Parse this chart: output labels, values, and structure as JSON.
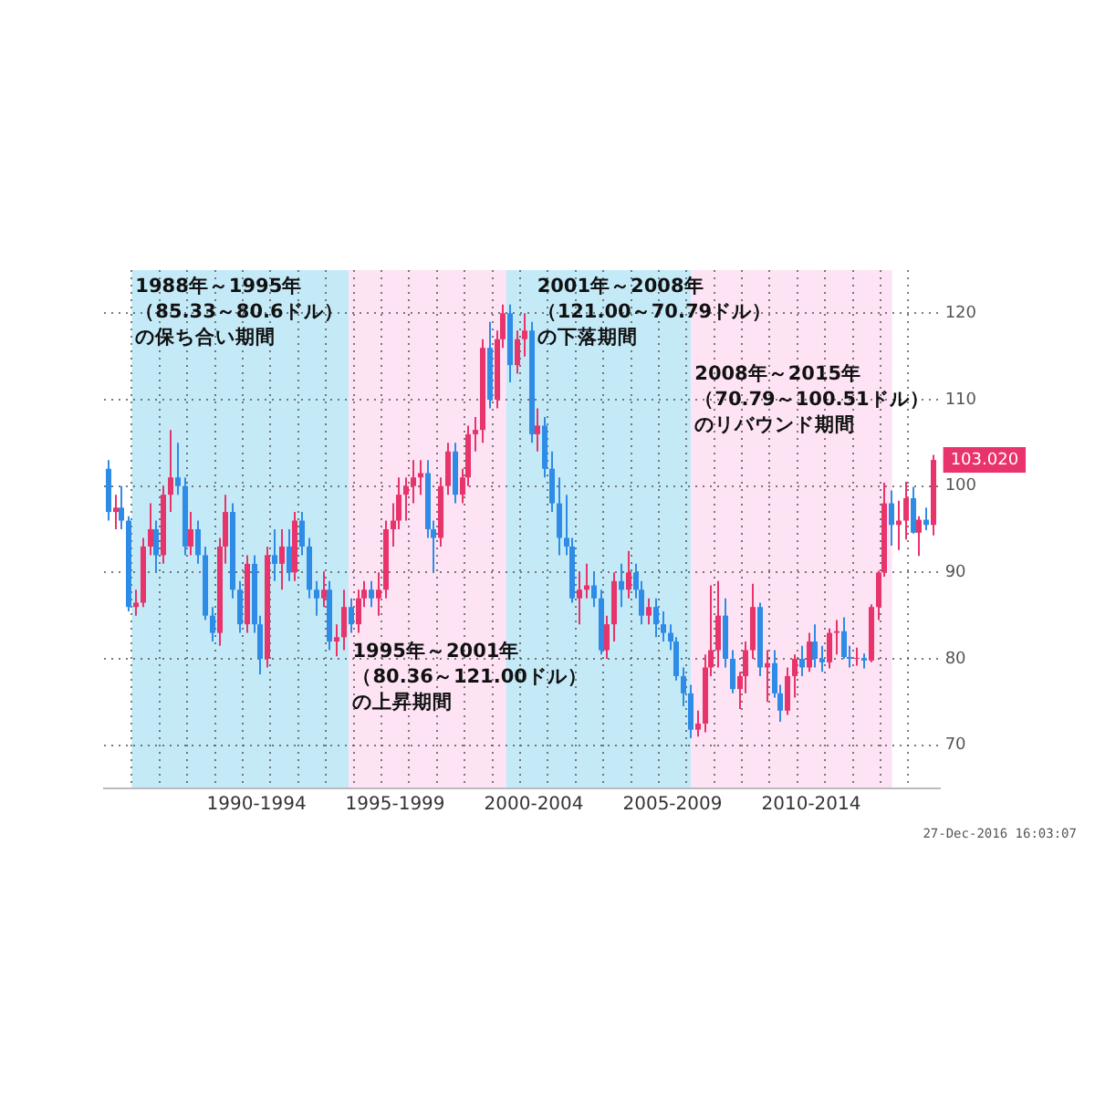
{
  "chart_data": {
    "type": "candlestick",
    "x": [
      "1987-02-15",
      "1987-05-15",
      "1987-08-15",
      "1987-11-15",
      "1988-02-15",
      "1988-05-15",
      "1988-08-15",
      "1988-11-15",
      "1989-02-15",
      "1989-05-15",
      "1989-08-15",
      "1989-11-15",
      "1990-02-15",
      "1990-05-15",
      "1990-08-15",
      "1990-11-15",
      "1991-02-15",
      "1991-05-15",
      "1991-08-15",
      "1991-11-15",
      "1992-02-15",
      "1992-05-15",
      "1992-08-15",
      "1992-11-15",
      "1993-02-15",
      "1993-05-15",
      "1993-08-15",
      "1993-11-15",
      "1994-02-15",
      "1994-05-15",
      "1994-08-15",
      "1994-11-15",
      "1995-02-15",
      "1995-05-15",
      "1995-08-15",
      "1995-11-15",
      "1996-02-15",
      "1996-05-15",
      "1996-08-15",
      "1996-11-15",
      "1997-02-15",
      "1997-05-15",
      "1997-08-15",
      "1997-11-15",
      "1998-02-15",
      "1998-05-15",
      "1998-08-15",
      "1998-11-15",
      "1999-02-15",
      "1999-05-15",
      "1999-08-15",
      "1999-11-15",
      "2000-02-15",
      "2000-05-15",
      "2000-08-15",
      "2000-11-15",
      "2001-02-15",
      "2001-05-15",
      "2001-08-15",
      "2001-11-15",
      "2002-02-15",
      "2002-05-15",
      "2002-08-15",
      "2002-11-15",
      "2003-02-15",
      "2003-05-15",
      "2003-08-15",
      "2003-11-15",
      "2004-02-15",
      "2004-05-15",
      "2004-08-15",
      "2004-11-15",
      "2005-02-15",
      "2005-05-15",
      "2005-08-15",
      "2005-11-15",
      "2006-02-15",
      "2006-05-15",
      "2006-08-15",
      "2006-11-15",
      "2007-02-15",
      "2007-05-15",
      "2007-08-15",
      "2007-11-15",
      "2008-02-15",
      "2008-05-15",
      "2008-08-15",
      "2008-11-15",
      "2009-02-15",
      "2009-05-15",
      "2009-08-15",
      "2009-11-15",
      "2010-02-15",
      "2010-05-15",
      "2010-08-15",
      "2010-11-15",
      "2011-02-15",
      "2011-05-15",
      "2011-08-15",
      "2011-11-15",
      "2012-02-15",
      "2012-05-15",
      "2012-08-15",
      "2012-11-15",
      "2013-02-15",
      "2013-05-15",
      "2013-08-15",
      "2013-11-15",
      "2014-02-15",
      "2014-05-15",
      "2014-08-15",
      "2014-11-15",
      "2015-02-15",
      "2015-05-15",
      "2015-08-15",
      "2015-11-15",
      "2016-02-15",
      "2016-05-15",
      "2016-08-15",
      "2016-11-15"
    ],
    "ohlc": [
      [
        102,
        103,
        96,
        97
      ],
      [
        97,
        99,
        95,
        97.5
      ],
      [
        97.5,
        100,
        95,
        96
      ],
      [
        96,
        96.5,
        85.5,
        86
      ],
      [
        86,
        88,
        85,
        86.5
      ],
      [
        86.5,
        94,
        86,
        93
      ],
      [
        93,
        98,
        92,
        95
      ],
      [
        95,
        96,
        90,
        92
      ],
      [
        92,
        100,
        91,
        99
      ],
      [
        99,
        106.5,
        97,
        101
      ],
      [
        101,
        105,
        99,
        100
      ],
      [
        100,
        101,
        92,
        93
      ],
      [
        93,
        97,
        92,
        95
      ],
      [
        95,
        96,
        91,
        92
      ],
      [
        92,
        93,
        84.5,
        85
      ],
      [
        85,
        86,
        82,
        83
      ],
      [
        83,
        94,
        81.5,
        93
      ],
      [
        93,
        99,
        91,
        97
      ],
      [
        97,
        98,
        87,
        88
      ],
      [
        88,
        89,
        83,
        84
      ],
      [
        84,
        92,
        83,
        91
      ],
      [
        91,
        92,
        83,
        84
      ],
      [
        84,
        85,
        78.2,
        80
      ],
      [
        80,
        93,
        79,
        92
      ],
      [
        92,
        95,
        89,
        91
      ],
      [
        91,
        95,
        88,
        93
      ],
      [
        93,
        95,
        89,
        90
      ],
      [
        90,
        97,
        89,
        96
      ],
      [
        96,
        97,
        92,
        93
      ],
      [
        93,
        94,
        87,
        88
      ],
      [
        88,
        89,
        85,
        87
      ],
      [
        87,
        90,
        86,
        88
      ],
      [
        88,
        89,
        81,
        82
      ],
      [
        82,
        84,
        80.3,
        82.5
      ],
      [
        82.5,
        88,
        81,
        86
      ],
      [
        86,
        87,
        83,
        84
      ],
      [
        84,
        88,
        83,
        87
      ],
      [
        87,
        89,
        86,
        88
      ],
      [
        88,
        89,
        86,
        87
      ],
      [
        87,
        90,
        85,
        88
      ],
      [
        88,
        96,
        87,
        95
      ],
      [
        95,
        98,
        93,
        96
      ],
      [
        96,
        101,
        95,
        99
      ],
      [
        99,
        101,
        96,
        100
      ],
      [
        100,
        103,
        98,
        101
      ],
      [
        101,
        103,
        99,
        101.5
      ],
      [
        101.5,
        103,
        94,
        95
      ],
      [
        95,
        96,
        90,
        94
      ],
      [
        94,
        101,
        93,
        100
      ],
      [
        100,
        105,
        99,
        104
      ],
      [
        104,
        105,
        98,
        99
      ],
      [
        99,
        102,
        98,
        101
      ],
      [
        101,
        107,
        100,
        106
      ],
      [
        106,
        108,
        104,
        106.5
      ],
      [
        106.5,
        117,
        105,
        116
      ],
      [
        116,
        119,
        109,
        110
      ],
      [
        110,
        118,
        109,
        117
      ],
      [
        117,
        121,
        116,
        120
      ],
      [
        120,
        121,
        112,
        114
      ],
      [
        114,
        118,
        113,
        117
      ],
      [
        117,
        120,
        115,
        118
      ],
      [
        118,
        119,
        105,
        106
      ],
      [
        106,
        109,
        104,
        107
      ],
      [
        107,
        108,
        101,
        102
      ],
      [
        102,
        104,
        97,
        98
      ],
      [
        98,
        101,
        92,
        94
      ],
      [
        94,
        99,
        92,
        93
      ],
      [
        93,
        94,
        86.5,
        87
      ],
      [
        87,
        90,
        84,
        88
      ],
      [
        88,
        91,
        87,
        88.5
      ],
      [
        88.5,
        90,
        86,
        87
      ],
      [
        87,
        88,
        80.5,
        81
      ],
      [
        81,
        85,
        80,
        84
      ],
      [
        84,
        90,
        82,
        89
      ],
      [
        89,
        91,
        86,
        88
      ],
      [
        88,
        92.5,
        87,
        90
      ],
      [
        90,
        91,
        87,
        88
      ],
      [
        88,
        89,
        84,
        85
      ],
      [
        85,
        87,
        84,
        86
      ],
      [
        86,
        87,
        82.5,
        84
      ],
      [
        84,
        85.5,
        82,
        83
      ],
      [
        83,
        84,
        81,
        82
      ],
      [
        82,
        82.5,
        77.5,
        78
      ],
      [
        78,
        79,
        74.5,
        76
      ],
      [
        76,
        77,
        70.8,
        71.8
      ],
      [
        71.8,
        74,
        71,
        72.5
      ],
      [
        72.5,
        80.5,
        71.5,
        79
      ],
      [
        79,
        88.5,
        78,
        81
      ],
      [
        81,
        89,
        79,
        85
      ],
      [
        85,
        87,
        79,
        80
      ],
      [
        80,
        81,
        76,
        76.5
      ],
      [
        76.5,
        78.5,
        74.2,
        78
      ],
      [
        78,
        82,
        76,
        81
      ],
      [
        81,
        88.7,
        80,
        86
      ],
      [
        86,
        86.5,
        78,
        79
      ],
      [
        79,
        81,
        75,
        79.5
      ],
      [
        79.5,
        81,
        75.5,
        76
      ],
      [
        76,
        77,
        72.7,
        74
      ],
      [
        74,
        79,
        73.5,
        78
      ],
      [
        78,
        80.5,
        75.5,
        80
      ],
      [
        80,
        81.5,
        78,
        79
      ],
      [
        79,
        83,
        78.5,
        82
      ],
      [
        82,
        84,
        79,
        80
      ],
      [
        80,
        81.5,
        78.5,
        79.6
      ],
      [
        79.6,
        83.5,
        78.9,
        83
      ],
      [
        83,
        84.5,
        80.5,
        83.2
      ],
      [
        83.2,
        84.8,
        80,
        80.2
      ],
      [
        80.2,
        81.5,
        79,
        80
      ],
      [
        80,
        81.3,
        79.2,
        80.1
      ],
      [
        80.1,
        80.6,
        78.9,
        79.8
      ],
      [
        79.8,
        86.3,
        79.6,
        86
      ],
      [
        86,
        90.2,
        84.5,
        90
      ],
      [
        90,
        100.4,
        89.5,
        98
      ],
      [
        98,
        99.5,
        93.1,
        95.5
      ],
      [
        95.5,
        98.3,
        92.6,
        96
      ],
      [
        96,
        100.5,
        93.8,
        98.6
      ],
      [
        98.6,
        99.9,
        94.5,
        94.6
      ],
      [
        94.6,
        96.5,
        91.9,
        96.1
      ],
      [
        96.1,
        97.5,
        94.9,
        95.5
      ],
      [
        95.5,
        103.6,
        94.3,
        103.02
      ]
    ],
    "colors": [
      "#2e8be6",
      "#e8336b",
      "#2e8be6",
      "#2e8be6",
      "#e8336b",
      "#e8336b",
      "#e8336b",
      "#2e8be6",
      "#e8336b",
      "#e8336b",
      "#2e8be6",
      "#2e8be6",
      "#e8336b",
      "#2e8be6",
      "#2e8be6",
      "#2e8be6",
      "#e8336b",
      "#e8336b",
      "#2e8be6",
      "#2e8be6",
      "#e8336b",
      "#2e8be6",
      "#2e8be6",
      "#e8336b",
      "#2e8be6",
      "#e8336b",
      "#2e8be6",
      "#e8336b",
      "#2e8be6",
      "#2e8be6",
      "#2e8be6",
      "#e8336b",
      "#2e8be6",
      "#e8336b",
      "#e8336b",
      "#2e8be6",
      "#e8336b",
      "#e8336b",
      "#2e8be6",
      "#e8336b",
      "#e8336b",
      "#e8336b",
      "#e8336b",
      "#e8336b",
      "#e8336b",
      "#e8336b",
      "#2e8be6",
      "#2e8be6",
      "#e8336b",
      "#e8336b",
      "#2e8be6",
      "#e8336b",
      "#e8336b",
      "#e8336b",
      "#e8336b",
      "#2e8be6",
      "#e8336b",
      "#e8336b",
      "#2e8be6",
      "#e8336b",
      "#e8336b",
      "#2e8be6",
      "#e8336b",
      "#2e8be6",
      "#2e8be6",
      "#2e8be6",
      "#2e8be6",
      "#2e8be6",
      "#e8336b",
      "#e8336b",
      "#2e8be6",
      "#2e8be6",
      "#e8336b",
      "#e8336b",
      "#2e8be6",
      "#e8336b",
      "#2e8be6",
      "#2e8be6",
      "#e8336b",
      "#2e8be6",
      "#2e8be6",
      "#2e8be6",
      "#2e8be6",
      "#2e8be6",
      "#2e8be6",
      "#e8336b",
      "#e8336b",
      "#e8336b",
      "#e8336b",
      "#2e8be6",
      "#2e8be6",
      "#e8336b",
      "#e8336b",
      "#e8336b",
      "#2e8be6",
      "#e8336b",
      "#2e8be6",
      "#2e8be6",
      "#e8336b",
      "#e8336b",
      "#2e8be6",
      "#e8336b",
      "#2e8be6",
      "#2e8be6",
      "#e8336b",
      "#e8336b",
      "#2e8be6",
      "#2e8be6",
      "#e8336b",
      "#2e8be6",
      "#e8336b",
      "#e8336b",
      "#e8336b",
      "#2e8be6",
      "#e8336b",
      "#e8336b",
      "#2e8be6",
      "#e8336b",
      "#2e8be6",
      "#e8336b"
    ],
    "xlim": [
      "1987-01-01",
      "2017-02-15"
    ],
    "xticks": [
      {
        "value": "1988-01-01",
        "label": null
      },
      {
        "value": "1989-01-01",
        "label": null
      },
      {
        "value": "1990-01-01",
        "label": null
      },
      {
        "value": "1991-01-01",
        "label": null
      },
      {
        "value": "1992-01-01",
        "label": null
      },
      {
        "value": "1992-07-01",
        "label": "1990-1994"
      },
      {
        "value": "1993-01-01",
        "label": null
      },
      {
        "value": "1994-01-01",
        "label": null
      },
      {
        "value": "1995-01-01",
        "label": null
      },
      {
        "value": "1996-01-01",
        "label": null
      },
      {
        "value": "1997-01-01",
        "label": null
      },
      {
        "value": "1997-07-01",
        "label": "1995-1999"
      },
      {
        "value": "1998-01-01",
        "label": null
      },
      {
        "value": "1999-01-01",
        "label": null
      },
      {
        "value": "2000-01-01",
        "label": null
      },
      {
        "value": "2001-01-01",
        "label": null
      },
      {
        "value": "2002-01-01",
        "label": null
      },
      {
        "value": "2002-07-01",
        "label": "2000-2004"
      },
      {
        "value": "2003-01-01",
        "label": null
      },
      {
        "value": "2004-01-01",
        "label": null
      },
      {
        "value": "2005-01-01",
        "label": null
      },
      {
        "value": "2006-01-01",
        "label": null
      },
      {
        "value": "2007-01-01",
        "label": null
      },
      {
        "value": "2007-07-01",
        "label": "2005-2009"
      },
      {
        "value": "2008-01-01",
        "label": null
      },
      {
        "value": "2009-01-01",
        "label": null
      },
      {
        "value": "2010-01-01",
        "label": null
      },
      {
        "value": "2011-01-01",
        "label": null
      },
      {
        "value": "2012-01-01",
        "label": null
      },
      {
        "value": "2012-07-01",
        "label": "2010-2014"
      },
      {
        "value": "2013-01-01",
        "label": null
      },
      {
        "value": "2014-01-01",
        "label": null
      },
      {
        "value": "2015-01-01",
        "label": null
      },
      {
        "value": "2016-01-01",
        "label": null
      }
    ],
    "ylim": [
      65,
      125
    ],
    "yticks": [
      70,
      80,
      90,
      100,
      110,
      120
    ],
    "grid": true,
    "bands": [
      {
        "axis": "x",
        "from": "1988-01-01",
        "to": "1995-11-01",
        "color": "#c4eaf8",
        "label": "1988年～1995年（85.33～80.6ドル）の保ち合い期間"
      },
      {
        "axis": "x",
        "from": "1995-11-01",
        "to": "2001-07-01",
        "color": "#fde3f4",
        "label": "1995年～2001年（80.36～121.00ドル）の上昇期間"
      },
      {
        "axis": "x",
        "from": "2001-07-01",
        "to": "2008-03-01",
        "color": "#c4eaf8",
        "label": "2001年～2008年（121.00～70.79ドル）の下落期間"
      },
      {
        "axis": "x",
        "from": "2008-03-01",
        "to": "2015-06-01",
        "color": "#fde3f4",
        "label": "2008年～2015年（70.79～100.51ドル）のリバウンド期間"
      }
    ],
    "annotations": [
      "103.020",
      "27-Dec-2016 16:03:07"
    ]
  }
}
